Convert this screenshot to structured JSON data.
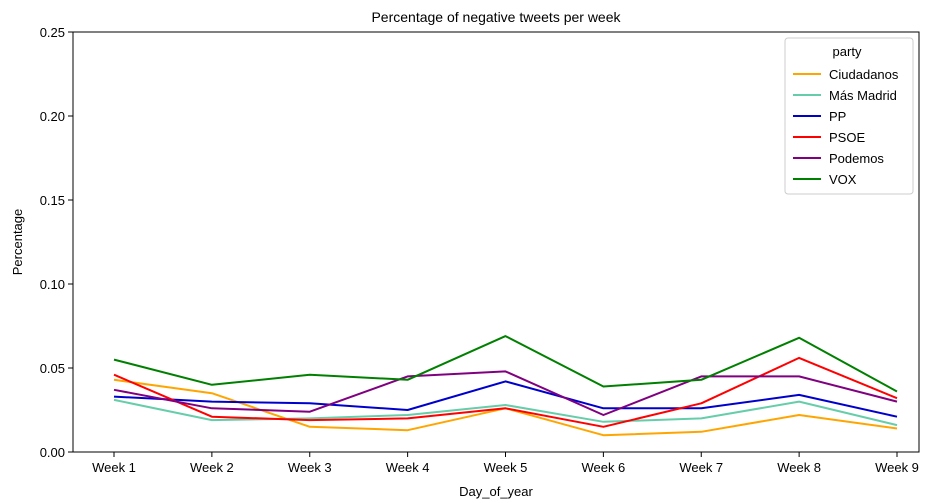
{
  "chart_data": {
    "type": "line",
    "title": "Percentage of negative tweets per week",
    "xlabel": "Day_of_year",
    "ylabel": "Percentage",
    "categories": [
      "Week 1",
      "Week 2",
      "Week 3",
      "Week 4",
      "Week 5",
      "Week 6",
      "Week 7",
      "Week 8",
      "Week 9"
    ],
    "ylim": [
      0,
      0.25
    ],
    "yticks": [
      "0.00",
      "0.05",
      "0.10",
      "0.15",
      "0.20",
      "0.25"
    ],
    "grid": false,
    "legend": {
      "title": "party",
      "position": "top-right"
    },
    "series": [
      {
        "name": "Ciudadanos",
        "color": "#ffa500",
        "values": [
          0.043,
          0.035,
          0.015,
          0.013,
          0.026,
          0.01,
          0.012,
          0.022,
          0.014
        ]
      },
      {
        "name": "Más Madrid",
        "color": "#66cdaa",
        "values": [
          0.031,
          0.019,
          0.02,
          0.022,
          0.028,
          0.018,
          0.02,
          0.03,
          0.016
        ]
      },
      {
        "name": "PP",
        "color": "#0000cd",
        "values": [
          0.033,
          0.03,
          0.029,
          0.025,
          0.042,
          0.026,
          0.026,
          0.034,
          0.021
        ]
      },
      {
        "name": "PSOE",
        "color": "#ff0000",
        "values": [
          0.046,
          0.021,
          0.019,
          0.02,
          0.026,
          0.015,
          0.029,
          0.056,
          0.032
        ]
      },
      {
        "name": "Podemos",
        "color": "#800080",
        "values": [
          0.037,
          0.026,
          0.024,
          0.045,
          0.048,
          0.022,
          0.045,
          0.045,
          0.03
        ]
      },
      {
        "name": "VOX",
        "color": "#008000",
        "values": [
          0.055,
          0.04,
          0.046,
          0.043,
          0.069,
          0.039,
          0.043,
          0.068,
          0.036
        ]
      }
    ]
  }
}
